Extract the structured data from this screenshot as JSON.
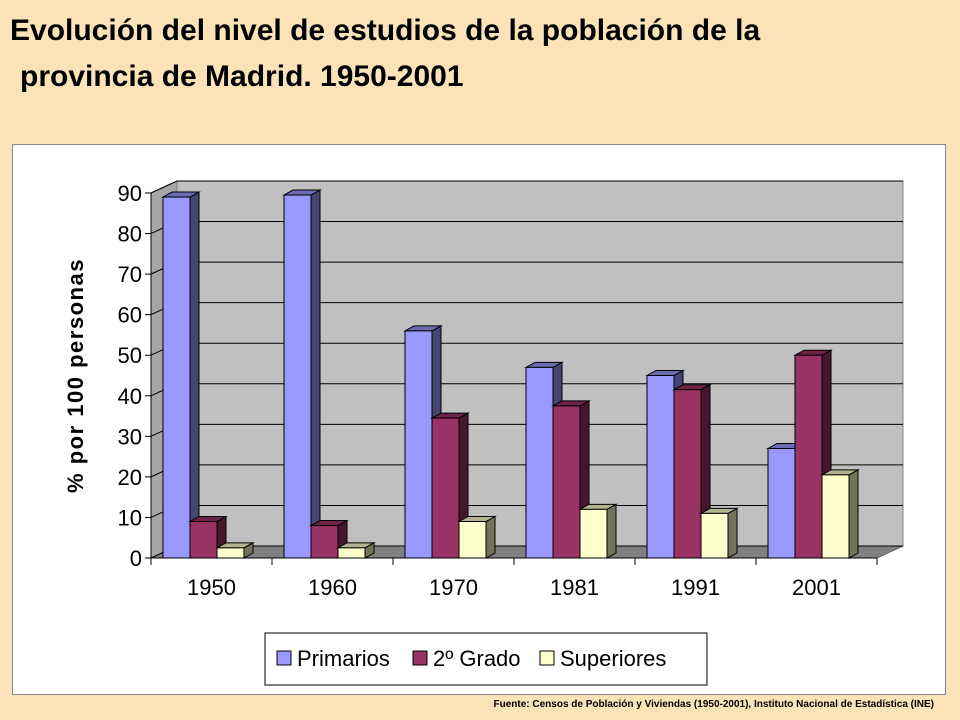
{
  "title_line1": "Evolución del nivel de estudios de la población de la",
  "title_line2": "provincia de Madrid. 1950-2001",
  "source": "Fuente: Censos de Población y Viviendas (1950-2001), Instituto Nacional de Estadística (INE)",
  "chart_data": {
    "type": "bar",
    "title": "",
    "xlabel": "",
    "ylabel": "% por 100 personas",
    "categories": [
      "1950",
      "1960",
      "1970",
      "1981",
      "1991",
      "2001"
    ],
    "ylim": [
      0,
      90
    ],
    "yticks": [
      0,
      10,
      20,
      30,
      40,
      50,
      60,
      70,
      80,
      90
    ],
    "grid": true,
    "legend_position": "bottom",
    "series": [
      {
        "name": "Primarios",
        "color": "#9999FF",
        "values": [
          89,
          89.5,
          56,
          47,
          45,
          27
        ]
      },
      {
        "name": "2º Grado",
        "color": "#993366",
        "values": [
          9,
          8,
          34.5,
          37.5,
          41.5,
          50
        ]
      },
      {
        "name": "Superiores",
        "color": "#FFFFCC",
        "values": [
          2.5,
          2.5,
          9,
          12,
          11,
          20.5
        ]
      }
    ]
  }
}
